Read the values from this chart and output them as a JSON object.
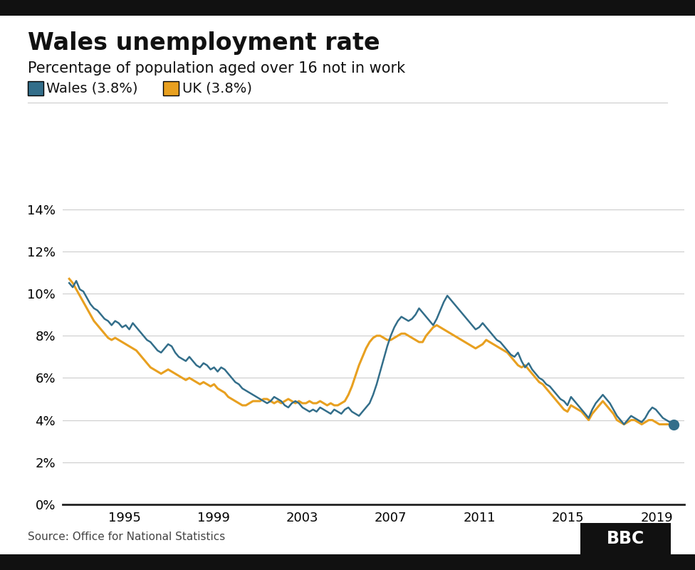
{
  "title": "Wales unemployment rate",
  "subtitle": "Percentage of population aged over 16 not in work",
  "wales_label": "Wales (3.8%)",
  "uk_label": "UK (3.8%)",
  "wales_color": "#336E8A",
  "uk_color": "#E8A020",
  "source": "Source: Office for National Statistics",
  "bbc_text": "BBC",
  "yticks": [
    0,
    2,
    4,
    6,
    8,
    10,
    12,
    14
  ],
  "xticks": [
    1995,
    1999,
    2003,
    2007,
    2011,
    2015,
    2019
  ],
  "ylim": [
    0,
    15
  ],
  "background_color": "#ffffff",
  "grid_color": "#cccccc",
  "wales_data": [
    10.5,
    10.3,
    10.6,
    10.2,
    10.1,
    9.8,
    9.5,
    9.3,
    9.2,
    9.0,
    8.8,
    8.7,
    8.5,
    8.7,
    8.6,
    8.4,
    8.5,
    8.3,
    8.6,
    8.4,
    8.2,
    8.0,
    7.8,
    7.7,
    7.5,
    7.3,
    7.2,
    7.4,
    7.6,
    7.5,
    7.2,
    7.0,
    6.9,
    6.8,
    7.0,
    6.8,
    6.6,
    6.5,
    6.7,
    6.6,
    6.4,
    6.5,
    6.3,
    6.5,
    6.4,
    6.2,
    6.0,
    5.8,
    5.7,
    5.5,
    5.4,
    5.3,
    5.2,
    5.1,
    5.0,
    4.9,
    4.8,
    4.9,
    5.1,
    5.0,
    4.9,
    4.7,
    4.6,
    4.8,
    4.9,
    4.8,
    4.6,
    4.5,
    4.4,
    4.5,
    4.4,
    4.6,
    4.5,
    4.4,
    4.3,
    4.5,
    4.4,
    4.3,
    4.5,
    4.6,
    4.4,
    4.3,
    4.2,
    4.4,
    4.6,
    4.8,
    5.2,
    5.7,
    6.3,
    6.9,
    7.5,
    8.0,
    8.4,
    8.7,
    8.9,
    8.8,
    8.7,
    8.8,
    9.0,
    9.3,
    9.1,
    8.9,
    8.7,
    8.5,
    8.8,
    9.2,
    9.6,
    9.9,
    9.7,
    9.5,
    9.3,
    9.1,
    8.9,
    8.7,
    8.5,
    8.3,
    8.4,
    8.6,
    8.4,
    8.2,
    8.0,
    7.8,
    7.7,
    7.5,
    7.3,
    7.1,
    7.0,
    7.2,
    6.8,
    6.5,
    6.7,
    6.4,
    6.2,
    6.0,
    5.9,
    5.7,
    5.6,
    5.4,
    5.2,
    5.0,
    4.9,
    4.7,
    5.1,
    4.9,
    4.7,
    4.5,
    4.3,
    4.1,
    4.5,
    4.8,
    5.0,
    5.2,
    5.0,
    4.8,
    4.5,
    4.2,
    4.0,
    3.8,
    4.0,
    4.2,
    4.1,
    4.0,
    3.9,
    4.1,
    4.4,
    4.6,
    4.5,
    4.3,
    4.1,
    4.0,
    3.9,
    3.8
  ],
  "uk_data": [
    10.7,
    10.5,
    10.2,
    9.9,
    9.6,
    9.3,
    9.0,
    8.7,
    8.5,
    8.3,
    8.1,
    7.9,
    7.8,
    7.9,
    7.8,
    7.7,
    7.6,
    7.5,
    7.4,
    7.3,
    7.1,
    6.9,
    6.7,
    6.5,
    6.4,
    6.3,
    6.2,
    6.3,
    6.4,
    6.3,
    6.2,
    6.1,
    6.0,
    5.9,
    6.0,
    5.9,
    5.8,
    5.7,
    5.8,
    5.7,
    5.6,
    5.7,
    5.5,
    5.4,
    5.3,
    5.1,
    5.0,
    4.9,
    4.8,
    4.7,
    4.7,
    4.8,
    4.9,
    4.9,
    4.9,
    5.0,
    5.0,
    4.9,
    4.8,
    4.9,
    4.8,
    4.9,
    5.0,
    4.9,
    4.8,
    4.9,
    4.8,
    4.8,
    4.9,
    4.8,
    4.8,
    4.9,
    4.8,
    4.7,
    4.8,
    4.7,
    4.7,
    4.8,
    4.9,
    5.2,
    5.6,
    6.1,
    6.6,
    7.0,
    7.4,
    7.7,
    7.9,
    8.0,
    8.0,
    7.9,
    7.8,
    7.8,
    7.9,
    8.0,
    8.1,
    8.1,
    8.0,
    7.9,
    7.8,
    7.7,
    7.7,
    8.0,
    8.2,
    8.4,
    8.5,
    8.4,
    8.3,
    8.2,
    8.1,
    8.0,
    7.9,
    7.8,
    7.7,
    7.6,
    7.5,
    7.4,
    7.5,
    7.6,
    7.8,
    7.7,
    7.6,
    7.5,
    7.4,
    7.3,
    7.2,
    7.0,
    6.8,
    6.6,
    6.5,
    6.6,
    6.4,
    6.2,
    6.0,
    5.8,
    5.7,
    5.5,
    5.3,
    5.1,
    4.9,
    4.7,
    4.5,
    4.4,
    4.7,
    4.6,
    4.5,
    4.4,
    4.2,
    4.0,
    4.3,
    4.5,
    4.7,
    4.9,
    4.7,
    4.5,
    4.3,
    4.0,
    3.9,
    3.8,
    3.9,
    4.0,
    4.0,
    3.9,
    3.8,
    3.9,
    4.0,
    4.0,
    3.9,
    3.8,
    3.8,
    3.8,
    3.8,
    3.8
  ],
  "start_year": 1992.5,
  "end_year": 2019.75
}
